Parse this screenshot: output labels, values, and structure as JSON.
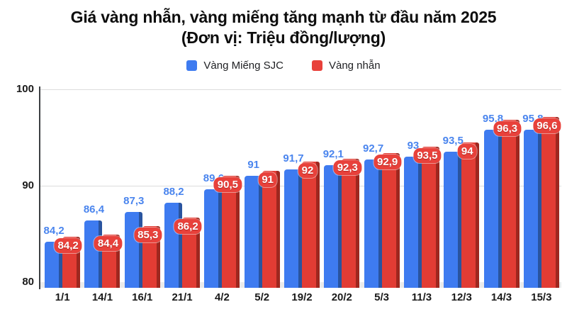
{
  "title": {
    "line1": "Giá vàng nhẫn, vàng miếng tăng mạnh từ đầu năm 2025",
    "line2": "(Đơn vị: Triệu đồng/lượng)"
  },
  "legend": [
    {
      "label": "Vàng Miếng SJC",
      "color": "#3e7bf0"
    },
    {
      "label": "Vàng nhẫn",
      "color": "#e8413b"
    }
  ],
  "chart_data": {
    "type": "bar",
    "title": "Giá vàng nhẫn, vàng miếng tăng mạnh từ đầu năm 2025 (Đơn vị: Triệu đồng/lượng)",
    "categories": [
      "1/1",
      "14/1",
      "16/1",
      "21/1",
      "4/2",
      "5/2",
      "19/2",
      "20/2",
      "5/3",
      "11/3",
      "12/3",
      "14/3",
      "15/3"
    ],
    "series": [
      {
        "name": "Vàng Miếng SJC",
        "values": [
          84.2,
          86.4,
          87.3,
          88.2,
          89.6,
          91,
          91.7,
          92.1,
          92.7,
          93,
          93.5,
          95.8,
          95.8
        ],
        "labels": [
          "84,2",
          "86,4",
          "87,3",
          "88,2",
          "89,6",
          "91",
          "91,7",
          "92,1",
          "92,7",
          "93",
          "93,5",
          "95,8",
          "95,8"
        ],
        "color": "#3e7bf0",
        "side_color": "#29549f",
        "label_color": "#4a85ee"
      },
      {
        "name": "Vàng nhẫn",
        "values": [
          84.2,
          84.4,
          85.3,
          86.2,
          90.5,
          91,
          92,
          92.3,
          92.9,
          93.5,
          94,
          96.3,
          96.6
        ],
        "labels": [
          "84,2",
          "84,4",
          "85,3",
          "86,2",
          "90,5",
          "91",
          "92",
          "92,3",
          "92,9",
          "93,5",
          "94",
          "96,3",
          "96,6"
        ],
        "color": "#e23c34",
        "side_color": "#9e271f",
        "label_bg": "#e8413b",
        "label_color": "#ffffff"
      }
    ],
    "ylim": [
      80,
      100
    ],
    "yticks": [
      80,
      90,
      100
    ],
    "grid": true,
    "legend_position": "top"
  }
}
